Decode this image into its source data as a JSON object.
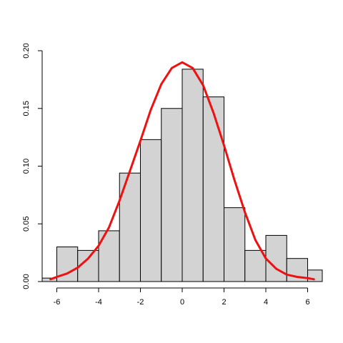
{
  "chart_data": {
    "type": "bar",
    "title": "",
    "xlabel": "",
    "ylabel": "",
    "xlim": [
      -6.7,
      6.7
    ],
    "ylim": [
      0,
      0.2
    ],
    "x_ticks": [
      -6,
      -4,
      -2,
      0,
      2,
      4,
      6
    ],
    "x_tick_labels": [
      "-6",
      "-4",
      "-2",
      "0",
      "2",
      "4",
      "6"
    ],
    "y_ticks": [
      0,
      0.05,
      0.1,
      0.15,
      0.2
    ],
    "y_tick_labels": [
      "0.00",
      "0.05",
      "0.10",
      "0.15",
      "0.20"
    ],
    "grid": false,
    "legend": "none",
    "bins": [
      {
        "x0": -7,
        "x1": -6,
        "density": 0.003
      },
      {
        "x0": -6,
        "x1": -5,
        "density": 0.03
      },
      {
        "x0": -5,
        "x1": -4,
        "density": 0.027
      },
      {
        "x0": -4,
        "x1": -3,
        "density": 0.044
      },
      {
        "x0": -3,
        "x1": -2,
        "density": 0.094
      },
      {
        "x0": -2,
        "x1": -1,
        "density": 0.123
      },
      {
        "x0": -1,
        "x1": 0,
        "density": 0.15
      },
      {
        "x0": 0,
        "x1": 1,
        "density": 0.184
      },
      {
        "x0": 1,
        "x1": 2,
        "density": 0.16
      },
      {
        "x0": 2,
        "x1": 3,
        "density": 0.064
      },
      {
        "x0": 3,
        "x1": 4,
        "density": 0.027
      },
      {
        "x0": 4,
        "x1": 5,
        "density": 0.04
      },
      {
        "x0": 5,
        "x1": 6,
        "density": 0.02
      },
      {
        "x0": 6,
        "x1": 7,
        "density": 0.01
      }
    ],
    "bar_color": "#d3d3d3",
    "bar_edge_color": "#000000",
    "density_curve": {
      "color": "#ee1111",
      "x": [
        -6.3,
        -6.0,
        -5.5,
        -5.0,
        -4.5,
        -4.0,
        -3.5,
        -3.0,
        -2.5,
        -2.0,
        -1.5,
        -1.0,
        -0.5,
        0.0,
        0.5,
        1.0,
        1.5,
        2.0,
        2.5,
        3.0,
        3.5,
        4.0,
        4.5,
        5.0,
        5.5,
        6.0,
        6.3
      ],
      "y": [
        0.002,
        0.004,
        0.007,
        0.012,
        0.02,
        0.031,
        0.047,
        0.07,
        0.096,
        0.122,
        0.149,
        0.171,
        0.185,
        0.19,
        0.185,
        0.17,
        0.146,
        0.118,
        0.088,
        0.06,
        0.036,
        0.02,
        0.011,
        0.006,
        0.004,
        0.003,
        0.002
      ]
    }
  }
}
